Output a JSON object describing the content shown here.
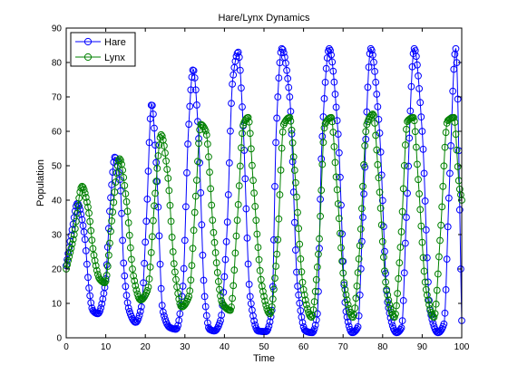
{
  "chart_data": {
    "type": "line",
    "title": "Hare/Lynx Dynamics",
    "xlabel": "Time",
    "ylabel": "Population",
    "xlim": [
      0,
      100
    ],
    "ylim": [
      0,
      90
    ],
    "xticks": [
      "0",
      "10",
      "20",
      "30",
      "40",
      "50",
      "60",
      "70",
      "80",
      "90",
      "100"
    ],
    "yticks": [
      "0",
      "10",
      "20",
      "30",
      "40",
      "50",
      "60",
      "70",
      "80",
      "90"
    ],
    "grid": false,
    "legend": "top-left",
    "marker": "circle",
    "series": [
      {
        "name": "Hare",
        "color": "#0000ff",
        "x": [
          0,
          1.6,
          2.8,
          4.6,
          5.8,
          6.7,
          8.0,
          9.8,
          11.2,
          12.3,
          13.6,
          14.6,
          15.9,
          17.6,
          19.0,
          20.3,
          21.6,
          22.8,
          24.4,
          26.2,
          27.8,
          29.5,
          30.9,
          32.1,
          33.4,
          35.0,
          36.2,
          37.5,
          39.0,
          40.6,
          42.1,
          43.5,
          44.6,
          46.5,
          48.5,
          50.5,
          52.0,
          53.1,
          54.5,
          56.5,
          58.5,
          60.5,
          62.2,
          63.5,
          64.6,
          66.5,
          68.7,
          70.7,
          72.3,
          73.7,
          75.0,
          77.0,
          79.1,
          81.3,
          83.5,
          84.8,
          86.0,
          88.0,
          90.0,
          92.0,
          94.0,
          95.5,
          96.8,
          98.5,
          100.0
        ],
        "y": [
          21,
          32,
          39,
          30,
          14,
          8,
          7,
          15,
          40,
          52.5,
          45,
          20,
          8,
          4.5,
          9,
          35,
          68,
          50,
          8,
          3,
          2.5,
          15,
          60,
          78,
          60,
          12,
          2.5,
          2,
          5,
          30,
          75,
          83,
          65,
          12,
          2,
          1.8,
          8,
          60,
          84,
          70,
          15,
          2,
          1.5,
          7,
          55,
          84,
          60,
          8,
          1.5,
          3,
          35,
          84,
          62,
          10,
          1.5,
          3,
          35,
          84,
          60,
          8,
          1.5,
          4,
          42,
          84,
          5
        ]
      },
      {
        "name": "Lynx",
        "color": "#008000",
        "x": [
          0,
          2.0,
          4.0,
          5.5,
          7.0,
          8.5,
          9.8,
          11.6,
          13.5,
          15.2,
          17.0,
          18.8,
          20.6,
          22.5,
          24.0,
          25.6,
          27.4,
          29.2,
          31.0,
          32.8,
          34.0,
          35.3,
          37.3,
          39.5,
          41.5,
          43.3,
          44.8,
          46.0,
          47.3,
          49.5,
          51.5,
          53.3,
          55.0,
          56.5,
          57.8,
          60.0,
          62.0,
          63.8,
          65.4,
          67.0,
          68.3,
          70.5,
          72.5,
          74.2,
          76.0,
          77.6,
          78.9,
          81.0,
          83.0,
          84.6,
          86.3,
          87.8,
          89.0,
          91.0,
          93.0,
          94.6,
          96.4,
          98.0,
          99.4,
          100.0
        ],
        "y": [
          20,
          30,
          44,
          38,
          24,
          17,
          16,
          35,
          52,
          40,
          18,
          11,
          14,
          42,
          59,
          48,
          20,
          9,
          12,
          42,
          62,
          60,
          30,
          10,
          8,
          35,
          62,
          64,
          45,
          15,
          7,
          25,
          62,
          64,
          48,
          14,
          6,
          25,
          62,
          64,
          46,
          14,
          6,
          26,
          62,
          65,
          48,
          14,
          6,
          28,
          63,
          64,
          46,
          14,
          6,
          30,
          63,
          64,
          44,
          40
        ]
      }
    ]
  }
}
